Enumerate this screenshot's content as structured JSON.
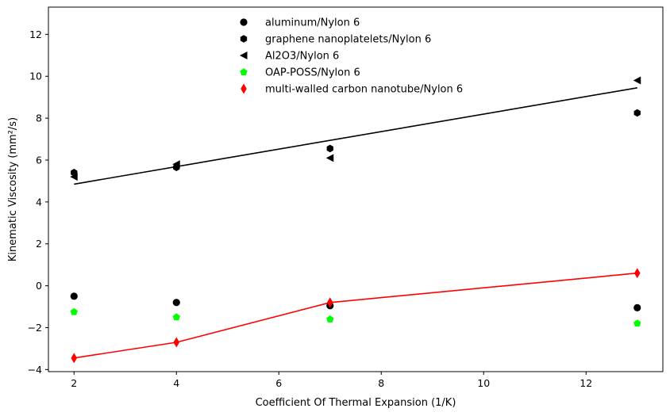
{
  "chart_data": {
    "type": "scatter",
    "title": "",
    "xlabel": "Coefficient Of Thermal Expansion (1/K)",
    "ylabel": "Kinematic Viscosity (mm²/s)",
    "xlim": [
      1.5,
      13.5
    ],
    "ylim": [
      -4.1,
      13.3
    ],
    "xticks": [
      2,
      4,
      6,
      8,
      10,
      12
    ],
    "yticks": [
      -4,
      -2,
      0,
      2,
      4,
      6,
      8,
      10,
      12
    ],
    "grid": false,
    "legend_position": "top-center",
    "series": [
      {
        "name": "aluminum/Nylon 6",
        "marker": "circle",
        "color": "#000000",
        "points": [
          {
            "x": 2,
            "y": -0.5
          },
          {
            "x": 4,
            "y": -0.8
          },
          {
            "x": 7,
            "y": -0.95
          },
          {
            "x": 13,
            "y": -1.05
          }
        ]
      },
      {
        "name": "graphene nanoplatelets/Nylon 6",
        "marker": "hexagon",
        "color": "#000000",
        "points": [
          {
            "x": 2,
            "y": 5.4
          },
          {
            "x": 4,
            "y": 5.65
          },
          {
            "x": 7,
            "y": 6.55
          },
          {
            "x": 13,
            "y": 8.25
          }
        ]
      },
      {
        "name": "Al2O3/Nylon 6",
        "marker": "triangle-left",
        "color": "#000000",
        "points": [
          {
            "x": 2,
            "y": 5.2
          },
          {
            "x": 4,
            "y": 5.8
          },
          {
            "x": 7,
            "y": 6.1
          },
          {
            "x": 13,
            "y": 9.8
          }
        ]
      },
      {
        "name": "OAP-POSS/Nylon 6",
        "marker": "pentagon",
        "color": "#00ff00",
        "points": [
          {
            "x": 2,
            "y": -1.25
          },
          {
            "x": 4,
            "y": -1.5
          },
          {
            "x": 7,
            "y": -1.6
          },
          {
            "x": 13,
            "y": -1.8
          }
        ]
      },
      {
        "name": "multi-walled carbon nanotube/Nylon 6",
        "marker": "diamond",
        "color": "#ff0000",
        "points": [
          {
            "x": 2,
            "y": -3.45
          },
          {
            "x": 4,
            "y": -2.7
          },
          {
            "x": 7,
            "y": -0.8
          },
          {
            "x": 13,
            "y": 0.6
          }
        ]
      }
    ],
    "lines": [
      {
        "kind": "linear-fit",
        "color": "#000000",
        "points": [
          {
            "x": 2,
            "y": 4.85
          },
          {
            "x": 13,
            "y": 9.45
          }
        ]
      },
      {
        "kind": "polyline",
        "color": "#ff0000",
        "points": [
          {
            "x": 2,
            "y": -3.45
          },
          {
            "x": 4,
            "y": -2.7
          },
          {
            "x": 7,
            "y": -0.8
          },
          {
            "x": 13,
            "y": 0.6
          }
        ]
      }
    ]
  }
}
